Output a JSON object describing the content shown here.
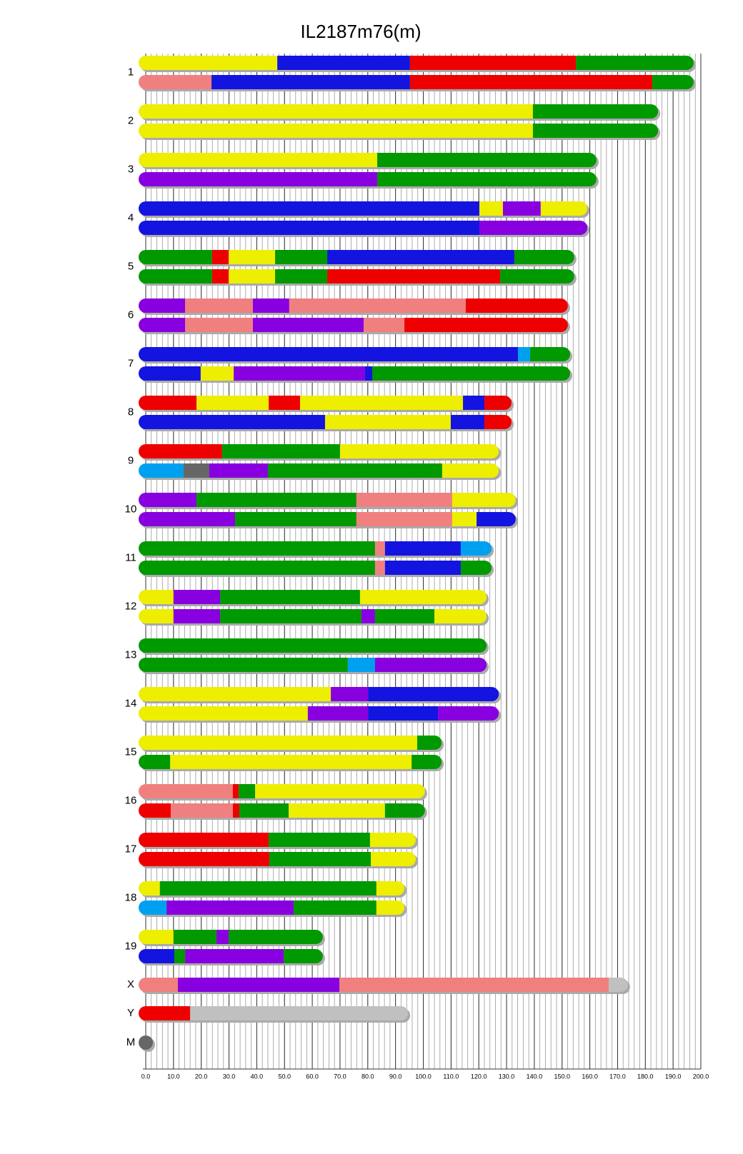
{
  "chart_data": {
    "type": "chromosome",
    "title": "IL2187m76(m)",
    "xlim": [
      0,
      200
    ],
    "xticks": [
      {
        "value": 0,
        "label": "0.0"
      },
      {
        "value": 10,
        "label": "10.0"
      },
      {
        "value": 20,
        "label": "20.0"
      },
      {
        "value": 30,
        "label": "30.0"
      },
      {
        "value": 40,
        "label": "40.0"
      },
      {
        "value": 50,
        "label": "50.0"
      },
      {
        "value": 60,
        "label": "60.0"
      },
      {
        "value": 70,
        "label": "70.0"
      },
      {
        "value": 80,
        "label": "80.0"
      },
      {
        "value": 90,
        "label": "90.0"
      },
      {
        "value": 100,
        "label": "100.0"
      },
      {
        "value": 110,
        "label": "110.0"
      },
      {
        "value": 120,
        "label": "120.0"
      },
      {
        "value": 130,
        "label": "130.0"
      },
      {
        "value": 140,
        "label": "140.0"
      },
      {
        "value": 150,
        "label": "150.0"
      },
      {
        "value": 160,
        "label": "160.0"
      },
      {
        "value": 170,
        "label": "170.0"
      },
      {
        "value": 180,
        "label": "180.0"
      },
      {
        "value": 190,
        "label": "190.0"
      },
      {
        "value": 200,
        "label": "200.0"
      }
    ],
    "minor_grid_step": 2,
    "grid": true,
    "chromosomes": [
      {
        "name": "1",
        "haplotypes": [
          [
            {
              "end": 47.4,
              "color": "#eeee00"
            },
            {
              "end": 95.2,
              "color": "#1414e0"
            },
            {
              "end": 155.0,
              "color": "#ee0000"
            },
            {
              "end": 197.4,
              "color": "#009900"
            }
          ],
          [
            {
              "end": 23.7,
              "color": "#f08080"
            },
            {
              "end": 95.2,
              "color": "#1414e0"
            },
            {
              "end": 182.5,
              "color": "#ee0000"
            },
            {
              "end": 197.4,
              "color": "#009900"
            }
          ]
        ]
      },
      {
        "name": "2",
        "haplotypes": [
          [
            {
              "end": 139.5,
              "color": "#eeee00"
            },
            {
              "end": 184.6,
              "color": "#009900"
            }
          ],
          [
            {
              "end": 139.5,
              "color": "#eeee00"
            },
            {
              "end": 184.6,
              "color": "#009900"
            }
          ]
        ]
      },
      {
        "name": "3",
        "haplotypes": [
          [
            {
              "end": 83.4,
              "color": "#eeee00"
            },
            {
              "end": 162.4,
              "color": "#009900"
            }
          ],
          [
            {
              "end": 83.4,
              "color": "#8800e0"
            },
            {
              "end": 162.4,
              "color": "#009900"
            }
          ]
        ]
      },
      {
        "name": "4",
        "haplotypes": [
          [
            {
              "end": 120.2,
              "color": "#1414e0"
            },
            {
              "end": 128.7,
              "color": "#eeee00"
            },
            {
              "end": 142.3,
              "color": "#8800e0"
            },
            {
              "end": 159.1,
              "color": "#eeee00"
            }
          ],
          [
            {
              "end": 120.2,
              "color": "#1414e0"
            },
            {
              "end": 159.1,
              "color": "#8800e0"
            }
          ]
        ]
      },
      {
        "name": "5",
        "haplotypes": [
          [
            {
              "end": 23.9,
              "color": "#009900"
            },
            {
              "end": 29.9,
              "color": "#ee0000"
            },
            {
              "end": 46.6,
              "color": "#eeee00"
            },
            {
              "end": 65.4,
              "color": "#009900"
            },
            {
              "end": 132.8,
              "color": "#1414e0"
            },
            {
              "end": 154.4,
              "color": "#009900"
            }
          ],
          [
            {
              "end": 23.9,
              "color": "#009900"
            },
            {
              "end": 29.9,
              "color": "#ee0000"
            },
            {
              "end": 46.6,
              "color": "#eeee00"
            },
            {
              "end": 65.4,
              "color": "#009900"
            },
            {
              "end": 127.7,
              "color": "#ee0000"
            },
            {
              "end": 154.4,
              "color": "#009900"
            }
          ]
        ]
      },
      {
        "name": "6",
        "haplotypes": [
          [
            {
              "end": 14.2,
              "color": "#8800e0"
            },
            {
              "end": 38.6,
              "color": "#f08080"
            },
            {
              "end": 51.7,
              "color": "#8800e0"
            },
            {
              "end": 115.3,
              "color": "#f08080"
            },
            {
              "end": 152.1,
              "color": "#ee0000"
            }
          ],
          [
            {
              "end": 14.2,
              "color": "#8800e0"
            },
            {
              "end": 38.6,
              "color": "#f08080"
            },
            {
              "end": 78.5,
              "color": "#8800e0"
            },
            {
              "end": 93.2,
              "color": "#f08080"
            },
            {
              "end": 152.1,
              "color": "#ee0000"
            }
          ]
        ]
      },
      {
        "name": "7",
        "haplotypes": [
          [
            {
              "end": 134.1,
              "color": "#1414e0"
            },
            {
              "end": 138.5,
              "color": "#00a0f0"
            },
            {
              "end": 152.9,
              "color": "#009900"
            }
          ],
          [
            {
              "end": 19.8,
              "color": "#1414e0"
            },
            {
              "end": 31.7,
              "color": "#eeee00"
            },
            {
              "end": 79.0,
              "color": "#8800e0"
            },
            {
              "end": 81.6,
              "color": "#1414e0"
            },
            {
              "end": 152.9,
              "color": "#009900"
            }
          ]
        ]
      },
      {
        "name": "8",
        "haplotypes": [
          [
            {
              "end": 18.3,
              "color": "#ee0000"
            },
            {
              "end": 44.3,
              "color": "#eeee00"
            },
            {
              "end": 55.6,
              "color": "#ee0000"
            },
            {
              "end": 114.3,
              "color": "#eeee00"
            },
            {
              "end": 122.0,
              "color": "#1414e0"
            },
            {
              "end": 131.8,
              "color": "#ee0000"
            }
          ],
          [
            {
              "end": 64.6,
              "color": "#1414e0"
            },
            {
              "end": 109.9,
              "color": "#eeee00"
            },
            {
              "end": 122.0,
              "color": "#1414e0"
            },
            {
              "end": 131.8,
              "color": "#ee0000"
            }
          ]
        ]
      },
      {
        "name": "9",
        "haplotypes": [
          [
            {
              "end": 27.5,
              "color": "#ee0000"
            },
            {
              "end": 70.0,
              "color": "#009900"
            },
            {
              "end": 127.2,
              "color": "#eeee00"
            }
          ],
          [
            {
              "end": 13.6,
              "color": "#00a0f0"
            },
            {
              "end": 22.9,
              "color": "#666666"
            },
            {
              "end": 44.0,
              "color": "#8800e0"
            },
            {
              "end": 106.8,
              "color": "#009900"
            },
            {
              "end": 127.2,
              "color": "#eeee00"
            }
          ]
        ]
      },
      {
        "name": "10",
        "haplotypes": [
          [
            {
              "end": 18.3,
              "color": "#8800e0"
            },
            {
              "end": 75.9,
              "color": "#009900"
            },
            {
              "end": 110.4,
              "color": "#f08080"
            },
            {
              "end": 133.3,
              "color": "#eeee00"
            }
          ],
          [
            {
              "end": 32.2,
              "color": "#8800e0"
            },
            {
              "end": 75.9,
              "color": "#009900"
            },
            {
              "end": 110.4,
              "color": "#f08080"
            },
            {
              "end": 119.2,
              "color": "#eeee00"
            },
            {
              "end": 133.3,
              "color": "#1414e0"
            }
          ]
        ]
      },
      {
        "name": "11",
        "haplotypes": [
          [
            {
              "end": 82.6,
              "color": "#009900"
            },
            {
              "end": 86.2,
              "color": "#f08080"
            },
            {
              "end": 113.5,
              "color": "#1414e0"
            },
            {
              "end": 124.6,
              "color": "#00a0f0"
            }
          ],
          [
            {
              "end": 82.6,
              "color": "#009900"
            },
            {
              "end": 86.2,
              "color": "#f08080"
            },
            {
              "end": 113.5,
              "color": "#1414e0"
            },
            {
              "end": 124.6,
              "color": "#009900"
            }
          ]
        ]
      },
      {
        "name": "12",
        "haplotypes": [
          [
            {
              "end": 10.0,
              "color": "#eeee00"
            },
            {
              "end": 26.8,
              "color": "#8800e0"
            },
            {
              "end": 77.2,
              "color": "#009900"
            },
            {
              "end": 122.8,
              "color": "#eeee00"
            }
          ],
          [
            {
              "end": 10.0,
              "color": "#eeee00"
            },
            {
              "end": 26.8,
              "color": "#8800e0"
            },
            {
              "end": 77.7,
              "color": "#009900"
            },
            {
              "end": 82.6,
              "color": "#8800e0"
            },
            {
              "end": 104.0,
              "color": "#009900"
            },
            {
              "end": 122.8,
              "color": "#eeee00"
            }
          ]
        ]
      },
      {
        "name": "13",
        "haplotypes": [
          [
            {
              "end": 122.8,
              "color": "#009900"
            }
          ],
          [
            {
              "end": 72.8,
              "color": "#009900"
            },
            {
              "end": 82.6,
              "color": "#00a0f0"
            },
            {
              "end": 122.8,
              "color": "#8800e0"
            }
          ]
        ]
      },
      {
        "name": "14",
        "haplotypes": [
          [
            {
              "end": 66.7,
              "color": "#eeee00"
            },
            {
              "end": 80.1,
              "color": "#8800e0"
            },
            {
              "end": 127.2,
              "color": "#1414e0"
            }
          ],
          [
            {
              "end": 58.4,
              "color": "#eeee00"
            },
            {
              "end": 80.1,
              "color": "#8800e0"
            },
            {
              "end": 105.3,
              "color": "#1414e0"
            },
            {
              "end": 127.2,
              "color": "#8800e0"
            }
          ]
        ]
      },
      {
        "name": "15",
        "haplotypes": [
          [
            {
              "end": 97.8,
              "color": "#eeee00"
            },
            {
              "end": 106.6,
              "color": "#009900"
            }
          ],
          [
            {
              "end": 8.8,
              "color": "#009900"
            },
            {
              "end": 95.8,
              "color": "#eeee00"
            },
            {
              "end": 106.6,
              "color": "#009900"
            }
          ]
        ]
      },
      {
        "name": "16",
        "haplotypes": [
          [
            {
              "end": 31.4,
              "color": "#f08080"
            },
            {
              "end": 33.5,
              "color": "#ee0000"
            },
            {
              "end": 39.4,
              "color": "#009900"
            },
            {
              "end": 100.6,
              "color": "#eeee00"
            }
          ],
          [
            {
              "end": 9.0,
              "color": "#ee0000"
            },
            {
              "end": 31.4,
              "color": "#f08080"
            },
            {
              "end": 33.7,
              "color": "#ee0000"
            },
            {
              "end": 51.5,
              "color": "#009900"
            },
            {
              "end": 86.2,
              "color": "#eeee00"
            },
            {
              "end": 100.6,
              "color": "#009900"
            }
          ]
        ]
      },
      {
        "name": "17",
        "haplotypes": [
          [
            {
              "end": 44.3,
              "color": "#ee0000"
            },
            {
              "end": 80.8,
              "color": "#009900"
            },
            {
              "end": 97.3,
              "color": "#eeee00"
            }
          ],
          [
            {
              "end": 44.5,
              "color": "#ee0000"
            },
            {
              "end": 81.1,
              "color": "#009900"
            },
            {
              "end": 97.3,
              "color": "#eeee00"
            }
          ]
        ]
      },
      {
        "name": "18",
        "haplotypes": [
          [
            {
              "end": 5.1,
              "color": "#eeee00"
            },
            {
              "end": 83.1,
              "color": "#009900"
            },
            {
              "end": 93.2,
              "color": "#eeee00"
            }
          ],
          [
            {
              "end": 7.5,
              "color": "#00a0f0"
            },
            {
              "end": 53.3,
              "color": "#8800e0"
            },
            {
              "end": 83.1,
              "color": "#009900"
            },
            {
              "end": 93.2,
              "color": "#eeee00"
            }
          ]
        ]
      },
      {
        "name": "19",
        "haplotypes": [
          [
            {
              "end": 10.0,
              "color": "#eeee00"
            },
            {
              "end": 25.5,
              "color": "#009900"
            },
            {
              "end": 29.9,
              "color": "#8800e0"
            },
            {
              "end": 63.8,
              "color": "#009900"
            }
          ],
          [
            {
              "end": 10.3,
              "color": "#1414e0"
            },
            {
              "end": 14.2,
              "color": "#009900"
            },
            {
              "end": 49.7,
              "color": "#8800e0"
            },
            {
              "end": 63.8,
              "color": "#009900"
            }
          ]
        ]
      },
      {
        "name": "X",
        "haplotypes": [
          [
            {
              "end": 11.6,
              "color": "#f08080"
            },
            {
              "end": 69.8,
              "color": "#8800e0"
            },
            {
              "end": 166.8,
              "color": "#f08080"
            },
            {
              "end": 173.7,
              "color": "#c0c0c0"
            }
          ]
        ]
      },
      {
        "name": "Y",
        "haplotypes": [
          [
            {
              "end": 16.0,
              "color": "#ee0000"
            },
            {
              "end": 94.5,
              "color": "#c0c0c0"
            }
          ]
        ]
      },
      {
        "name": "M",
        "haplotypes": [
          [
            {
              "end": 0.1,
              "color": "#666666"
            }
          ]
        ]
      }
    ]
  }
}
